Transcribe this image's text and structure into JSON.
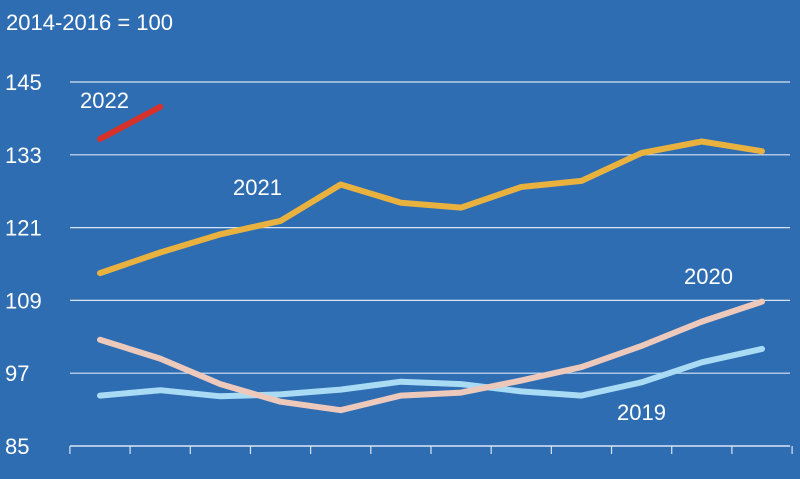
{
  "chart_data": {
    "type": "line",
    "unit_note": "2014-2016 = 100",
    "ylim": [
      85,
      145
    ],
    "yticks": [
      85,
      97,
      109,
      121,
      133,
      145
    ],
    "x_count": 12,
    "grid": true,
    "series": [
      {
        "name": "2019",
        "color": "#a9dbf4",
        "values": [
          93.3,
          94.2,
          93.2,
          93.5,
          94.3,
          95.6,
          95.2,
          94.0,
          93.3,
          95.5,
          98.8,
          101.0
        ]
      },
      {
        "name": "2020",
        "color": "#edc9bc",
        "values": [
          102.5,
          99.4,
          95.2,
          92.3,
          90.9,
          93.3,
          93.8,
          95.8,
          98.0,
          101.5,
          105.5,
          108.8
        ]
      },
      {
        "name": "2021",
        "color": "#e9b23f",
        "values": [
          113.5,
          116.9,
          119.9,
          122.1,
          128.1,
          125.1,
          124.3,
          127.7,
          128.7,
          133.3,
          135.2,
          133.6
        ]
      },
      {
        "name": "2022",
        "color": "#d6312b",
        "values": [
          135.6,
          140.9
        ]
      }
    ]
  }
}
